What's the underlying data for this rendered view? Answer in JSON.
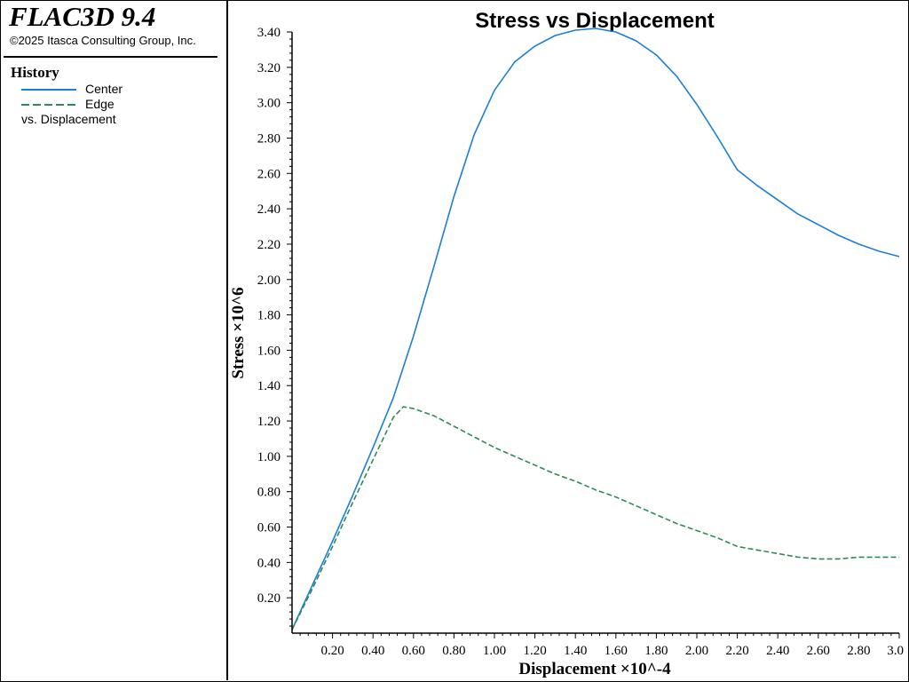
{
  "app": {
    "title": "FLAC3D 9.4",
    "copyright": "©2025 Itasca Consulting Group, Inc."
  },
  "legend": {
    "heading": "History",
    "entries": [
      {
        "label": "Center",
        "color": "#1a7fd6",
        "style": "solid"
      },
      {
        "label": "Edge",
        "color": "#2e8a57",
        "style": "dashed"
      }
    ],
    "suffix": "vs. Displacement"
  },
  "chart_data": {
    "type": "line",
    "title": "Stress vs Displacement",
    "xlabel": "Displacement ×10^-4",
    "ylabel": "Stress ×10^6",
    "xlim": [
      0,
      3.0
    ],
    "ylim": [
      0,
      3.4
    ],
    "x_ticks": [
      "0.20",
      "0.40",
      "0.60",
      "0.80",
      "1.00",
      "1.20",
      "1.40",
      "1.60",
      "1.80",
      "2.00",
      "2.20",
      "2.40",
      "2.60",
      "2.80",
      "3.0"
    ],
    "y_ticks": [
      "0.20",
      "0.40",
      "0.60",
      "0.80",
      "1.00",
      "1.20",
      "1.40",
      "1.60",
      "1.80",
      "2.00",
      "2.20",
      "2.40",
      "2.60",
      "2.80",
      "3.00",
      "3.20",
      "3.40"
    ],
    "series": [
      {
        "name": "Center",
        "color": "#1a7fd6",
        "x": [
          0,
          0.1,
          0.2,
          0.3,
          0.4,
          0.5,
          0.6,
          0.7,
          0.8,
          0.9,
          1.0,
          1.1,
          1.2,
          1.3,
          1.4,
          1.5,
          1.6,
          1.7,
          1.8,
          1.9,
          2.0,
          2.1,
          2.2,
          2.3,
          2.4,
          2.5,
          2.6,
          2.7,
          2.8,
          2.9,
          3.0
        ],
        "y": [
          0.02,
          0.27,
          0.52,
          0.78,
          1.05,
          1.33,
          1.68,
          2.07,
          2.47,
          2.82,
          3.07,
          3.23,
          3.32,
          3.38,
          3.41,
          3.42,
          3.4,
          3.35,
          3.27,
          3.15,
          2.99,
          2.81,
          2.62,
          2.53,
          2.45,
          2.37,
          2.31,
          2.25,
          2.2,
          2.16,
          2.13
        ]
      },
      {
        "name": "Edge",
        "color": "#2e8a57",
        "x": [
          0,
          0.1,
          0.2,
          0.3,
          0.4,
          0.5,
          0.55,
          0.6,
          0.7,
          0.8,
          0.9,
          1.0,
          1.1,
          1.2,
          1.3,
          1.4,
          1.5,
          1.6,
          1.7,
          1.8,
          1.9,
          2.0,
          2.1,
          2.2,
          2.3,
          2.4,
          2.5,
          2.6,
          2.7,
          2.8,
          2.9,
          3.0
        ],
        "y": [
          0.02,
          0.25,
          0.49,
          0.74,
          0.98,
          1.22,
          1.28,
          1.27,
          1.23,
          1.17,
          1.11,
          1.05,
          1.0,
          0.95,
          0.9,
          0.86,
          0.81,
          0.77,
          0.72,
          0.67,
          0.62,
          0.58,
          0.54,
          0.49,
          0.47,
          0.45,
          0.43,
          0.42,
          0.42,
          0.43,
          0.43,
          0.43
        ]
      }
    ]
  }
}
